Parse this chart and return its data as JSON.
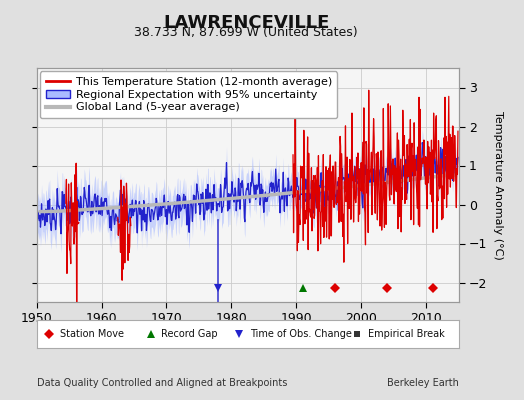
{
  "title": "LAWRENCEVILLE",
  "subtitle": "38.733 N, 87.699 W (United States)",
  "ylabel": "Temperature Anomaly (°C)",
  "xlabel_note": "Data Quality Controlled and Aligned at Breakpoints",
  "credit": "Berkeley Earth",
  "xlim": [
    1950,
    2015
  ],
  "ylim": [
    -2.5,
    3.5
  ],
  "yticks": [
    -2,
    -1,
    0,
    1,
    2,
    3
  ],
  "xticks": [
    1950,
    1960,
    1970,
    1980,
    1990,
    2000,
    2010
  ],
  "bg_color": "#e0e0e0",
  "plot_bg_color": "#f5f5f5",
  "station_move_years": [
    1996,
    2004,
    2011
  ],
  "record_gap_years": [
    1991
  ],
  "time_obs_change_years": [
    1978
  ],
  "empirical_break_years": [],
  "legend_labels": [
    "This Temperature Station (12-month average)",
    "Regional Expectation with 95% uncertainty",
    "Global Land (5-year average)"
  ],
  "station_color": "#dd0000",
  "regional_color": "#2222cc",
  "regional_fill": "#aabbff",
  "global_color": "#b8b8b8",
  "title_fontsize": 13,
  "subtitle_fontsize": 9,
  "ylabel_fontsize": 8,
  "tick_fontsize": 9,
  "note_fontsize": 7,
  "legend_fontsize": 8
}
